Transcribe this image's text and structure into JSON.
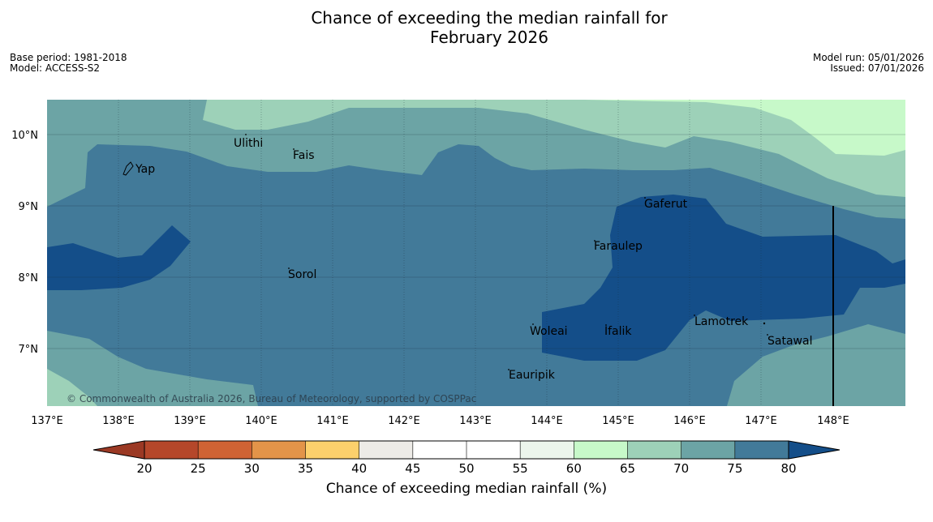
{
  "title_line1": "Chance of exceeding the median rainfall for",
  "title_line2": "February 2026",
  "meta_left": {
    "base_period": "Base period: 1981-2018",
    "model": "Model: ACCESS-S2"
  },
  "meta_right": {
    "model_run": "Model run: 05/01/2026",
    "issued": "Issued: 07/01/2026"
  },
  "lon_labels": [
    "137°E",
    "138°E",
    "139°E",
    "140°E",
    "141°E",
    "142°E",
    "143°E",
    "144°E",
    "145°E",
    "146°E",
    "147°E",
    "148°E"
  ],
  "lat_labels": [
    "10°N",
    "9°N",
    "8°N",
    "7°N"
  ],
  "places": [
    "Ulithi",
    "Fais",
    "Yap",
    "Gaferut",
    "Faraulep",
    "Sorol",
    "Lamotrek",
    "Woleai",
    "Ifalik",
    "Satawal",
    "Eauripik"
  ],
  "copyright": "© Commonwealth of Australia 2026, Bureau of Meteorology, supported by COSPPac",
  "colorbar": {
    "ticks": [
      "20",
      "25",
      "30",
      "35",
      "40",
      "45",
      "50",
      "55",
      "60",
      "65",
      "70",
      "75",
      "80"
    ],
    "colors": [
      "#b5472a",
      "#cf6334",
      "#e39449",
      "#fcd06c",
      "#edebe7",
      "#ffffff",
      "#ffffff",
      "#ecf6ec",
      "#c7f9c9",
      "#9dd1b8",
      "#6ca4a5",
      "#427a99"
    ],
    "under_color": "#9b3924",
    "over_color": "#144e89",
    "label": "Chance of exceeding median rainfall (%)"
  }
}
